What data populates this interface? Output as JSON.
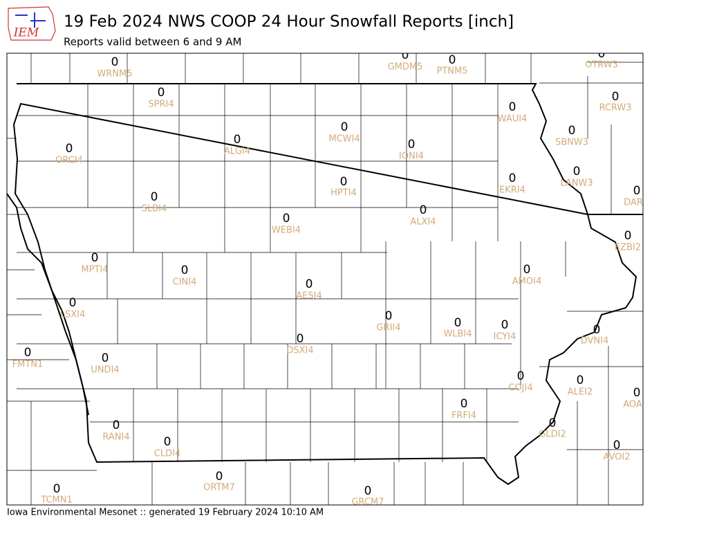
{
  "header": {
    "logo": "IEM",
    "title": "19 Feb 2024 NWS COOP 24 Hour Snowfall Reports [inch]",
    "subtitle": "Reports valid between 6 and 9 AM"
  },
  "stations": [
    {
      "id": "WRNM5",
      "value": 0
    },
    {
      "id": "GMDM5",
      "value": 0
    },
    {
      "id": "PTNM5",
      "value": 0
    },
    {
      "id": "OTRW3",
      "value": 0
    },
    {
      "id": "SPRI4",
      "value": 0
    },
    {
      "id": "RCRW3",
      "value": 0
    },
    {
      "id": "WAUI4",
      "value": 0
    },
    {
      "id": "MCWI4",
      "value": 0
    },
    {
      "id": "SBNW3",
      "value": 0
    },
    {
      "id": "ALGI4",
      "value": 0
    },
    {
      "id": "ORCI4",
      "value": 0
    },
    {
      "id": "IONI4",
      "value": 0
    },
    {
      "id": "LANW3",
      "value": 0
    },
    {
      "id": "EKRI4",
      "value": 0
    },
    {
      "id": "HPTI4",
      "value": 0
    },
    {
      "id": "DAR",
      "value": 0
    },
    {
      "id": "SLBI4",
      "value": 0
    },
    {
      "id": "ALXI4",
      "value": 0
    },
    {
      "id": "WEBI4",
      "value": 0
    },
    {
      "id": "EZBI2",
      "value": 0
    },
    {
      "id": "MPTI4",
      "value": 0
    },
    {
      "id": "AMOI4",
      "value": 0
    },
    {
      "id": "CINI4",
      "value": 0
    },
    {
      "id": "AESI4",
      "value": 0
    },
    {
      "id": "LSXI4",
      "value": 0
    },
    {
      "id": "GRII4",
      "value": 0
    },
    {
      "id": "WLBI4",
      "value": 0
    },
    {
      "id": "ICYI4",
      "value": 0
    },
    {
      "id": "DVNI4",
      "value": 0
    },
    {
      "id": "DSXI4",
      "value": 0
    },
    {
      "id": "FMTN1",
      "value": 0
    },
    {
      "id": "UNDI4",
      "value": 0
    },
    {
      "id": "COJI4",
      "value": 0
    },
    {
      "id": "ALEI2",
      "value": 0
    },
    {
      "id": "AOA",
      "value": 0
    },
    {
      "id": "FRFI4",
      "value": 0
    },
    {
      "id": "GLDI2",
      "value": 0
    },
    {
      "id": "RANI4",
      "value": 0
    },
    {
      "id": "CLDI4",
      "value": 0
    },
    {
      "id": "AVOI2",
      "value": 0
    },
    {
      "id": "ORTM7",
      "value": 0
    },
    {
      "id": "TCMN1",
      "value": 0
    },
    {
      "id": "GRCM7",
      "value": 0
    }
  ],
  "footer": "Iowa Environmental Mesonet :: generated 19 February 2024 10:10 AM"
}
